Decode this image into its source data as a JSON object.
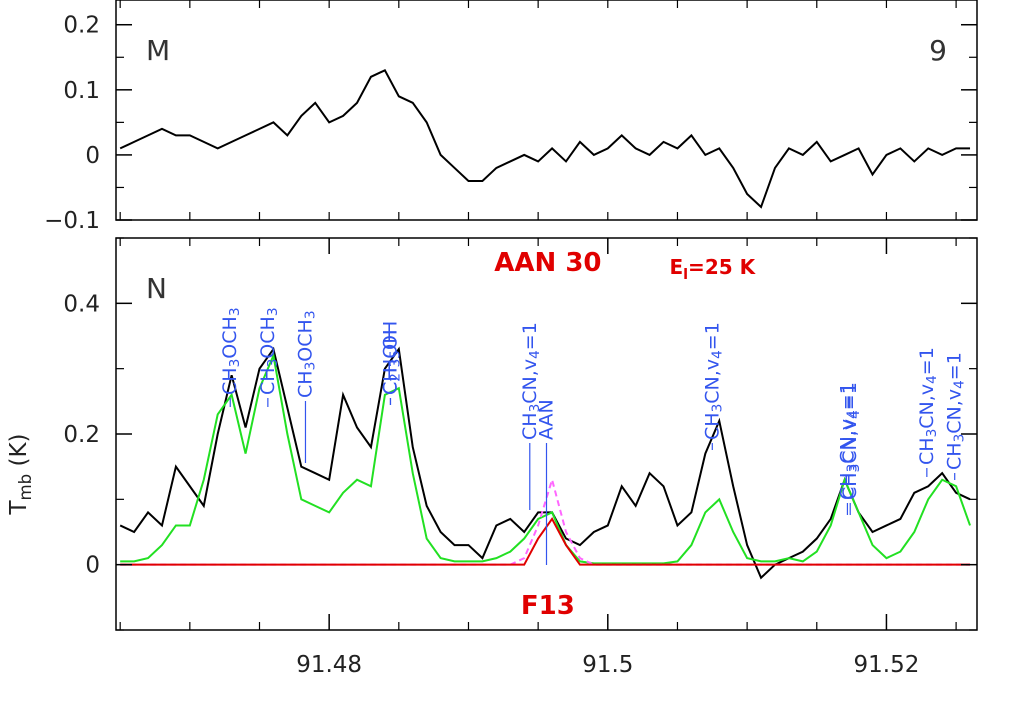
{
  "chart_data": [
    {
      "type": "line",
      "label": "M",
      "number": "9",
      "xlim": [
        91.4647,
        91.5265
      ],
      "ylim": [
        -0.1,
        0.238
      ],
      "yticks": [
        0.2,
        0.1,
        0,
        {
          "value": -0.1,
          "label": "−0.1"
        }
      ],
      "yminorticks": [
        -0.05,
        0.05,
        0.15
      ],
      "xminorticks": [
        91.465,
        91.47,
        91.475,
        91.48,
        91.485,
        91.49,
        91.495,
        91.5,
        91.505,
        91.51,
        91.515,
        91.52,
        91.525
      ],
      "x": [
        91.465,
        91.466,
        91.467,
        91.468,
        91.469,
        91.47,
        91.471,
        91.472,
        91.473,
        91.474,
        91.475,
        91.476,
        91.477,
        91.478,
        91.479,
        91.48,
        91.481,
        91.482,
        91.483,
        91.484,
        91.485,
        91.486,
        91.487,
        91.488,
        91.489,
        91.49,
        91.491,
        91.492,
        91.493,
        91.494,
        91.495,
        91.496,
        91.497,
        91.498,
        91.499,
        91.5,
        91.501,
        91.502,
        91.503,
        91.504,
        91.505,
        91.506,
        91.507,
        91.508,
        91.509,
        91.51,
        91.511,
        91.512,
        91.513,
        91.514,
        91.515,
        91.516,
        91.517,
        91.518,
        91.519,
        91.52,
        91.521,
        91.522,
        91.523,
        91.524,
        91.525,
        91.526
      ],
      "series": [
        {
          "color": "#000000",
          "values": [
            0.01,
            0.02,
            0.03,
            0.04,
            0.03,
            0.03,
            0.02,
            0.01,
            0.02,
            0.03,
            0.04,
            0.05,
            0.03,
            0.06,
            0.08,
            0.05,
            0.06,
            0.08,
            0.12,
            0.13,
            0.09,
            0.08,
            0.05,
            0.0,
            -0.02,
            -0.04,
            -0.04,
            -0.02,
            -0.01,
            0.0,
            -0.01,
            0.01,
            -0.01,
            0.02,
            0.0,
            0.01,
            0.03,
            0.01,
            0.0,
            0.02,
            0.01,
            0.03,
            0.0,
            0.01,
            -0.02,
            -0.06,
            -0.08,
            -0.02,
            0.01,
            0.0,
            0.02,
            -0.01,
            0.0,
            0.01,
            -0.03,
            0.0,
            0.01,
            -0.01,
            0.01,
            0.0,
            0.01,
            0.01
          ]
        }
      ]
    },
    {
      "type": "line",
      "label": "N",
      "y_label": "Tmb (K)",
      "annotations": [
        {
          "text": "AAN 30",
          "x": 91.4957,
          "y": 0.465
        },
        {
          "text": "El=25 K",
          "x": 91.5075,
          "y": 0.46
        },
        {
          "text": "F13",
          "x": 91.4957,
          "y": -0.06
        }
      ],
      "xlim": [
        91.4647,
        91.5265
      ],
      "ylim": [
        -0.1,
        0.5
      ],
      "xticks": [
        91.48,
        91.5,
        91.52
      ],
      "xminorticks": [
        91.465,
        91.47,
        91.475,
        91.485,
        91.49,
        91.495,
        91.505,
        91.51,
        91.515,
        91.525
      ],
      "yticks": [
        0,
        0.2,
        0.4
      ],
      "yminorticks": [
        -0.1,
        0.1,
        0.3,
        0.5
      ],
      "x": [
        91.465,
        91.466,
        91.467,
        91.468,
        91.469,
        91.47,
        91.471,
        91.472,
        91.473,
        91.474,
        91.475,
        91.476,
        91.477,
        91.478,
        91.479,
        91.48,
        91.481,
        91.482,
        91.483,
        91.484,
        91.485,
        91.486,
        91.487,
        91.488,
        91.489,
        91.49,
        91.491,
        91.492,
        91.493,
        91.494,
        91.495,
        91.496,
        91.497,
        91.498,
        91.499,
        91.5,
        91.501,
        91.502,
        91.503,
        91.504,
        91.505,
        91.506,
        91.507,
        91.508,
        91.509,
        91.51,
        91.511,
        91.512,
        91.513,
        91.514,
        91.515,
        91.516,
        91.517,
        91.518,
        91.519,
        91.52,
        91.521,
        91.522,
        91.523,
        91.524,
        91.525,
        91.526
      ],
      "series": [
        {
          "color": "#000000",
          "values": [
            0.06,
            0.05,
            0.08,
            0.06,
            0.15,
            0.12,
            0.09,
            0.2,
            0.29,
            0.21,
            0.3,
            0.33,
            0.24,
            0.15,
            0.14,
            0.13,
            0.26,
            0.21,
            0.18,
            0.3,
            0.33,
            0.18,
            0.09,
            0.05,
            0.03,
            0.03,
            0.01,
            0.06,
            0.07,
            0.05,
            0.08,
            0.08,
            0.04,
            0.03,
            0.05,
            0.06,
            0.12,
            0.09,
            0.14,
            0.12,
            0.06,
            0.08,
            0.17,
            0.22,
            0.12,
            0.03,
            -0.02,
            0.0,
            0.01,
            0.02,
            0.04,
            0.07,
            0.13,
            0.08,
            0.05,
            0.06,
            0.07,
            0.11,
            0.12,
            0.14,
            0.11,
            0.1
          ]
        },
        {
          "color": "#22e022",
          "values": [
            0.005,
            0.005,
            0.01,
            0.03,
            0.06,
            0.06,
            0.13,
            0.23,
            0.26,
            0.17,
            0.27,
            0.32,
            0.2,
            0.1,
            0.09,
            0.08,
            0.11,
            0.13,
            0.12,
            0.26,
            0.27,
            0.14,
            0.04,
            0.01,
            0.005,
            0.005,
            0.005,
            0.01,
            0.02,
            0.04,
            0.07,
            0.08,
            0.03,
            0.005,
            0.002,
            0.002,
            0.002,
            0.002,
            0.002,
            0.002,
            0.005,
            0.03,
            0.08,
            0.1,
            0.05,
            0.01,
            0.005,
            0.005,
            0.01,
            0.005,
            0.02,
            0.06,
            0.13,
            0.08,
            0.03,
            0.01,
            0.02,
            0.05,
            0.1,
            0.13,
            0.12,
            0.06
          ]
        },
        {
          "color": "#ff66ff",
          "dashed": true,
          "values": [
            0,
            0,
            0,
            0,
            0,
            0,
            0,
            0,
            0,
            0,
            0,
            0,
            0,
            0,
            0,
            0,
            0,
            0,
            0,
            0,
            0,
            0,
            0,
            0,
            0,
            0,
            0,
            0,
            0,
            0.01,
            0.06,
            0.13,
            0.05,
            0.01,
            0,
            0,
            0,
            0,
            0,
            0,
            0,
            0,
            0,
            0,
            0,
            0,
            0,
            0,
            0,
            0,
            0,
            0,
            0,
            0,
            0,
            0,
            0,
            0,
            0,
            0,
            0,
            0
          ]
        },
        {
          "color": "#e00000",
          "values": [
            0,
            0,
            0,
            0,
            0,
            0,
            0,
            0,
            0,
            0,
            0,
            0,
            0,
            0,
            0,
            0,
            0,
            0,
            0,
            0,
            0,
            0,
            0,
            0,
            0,
            0,
            0,
            0,
            0,
            0,
            0.04,
            0.07,
            0.03,
            0,
            0,
            0,
            0,
            0,
            0,
            0,
            0,
            0,
            0,
            0,
            0,
            0,
            0,
            0,
            0,
            0,
            0,
            0,
            0,
            0,
            0,
            0,
            0,
            0,
            0,
            0,
            0,
            0
          ]
        }
      ],
      "line_labels": [
        {
          "text": "CH3OCH3",
          "x": 91.4729
        },
        {
          "text": "CH3OCH3",
          "x": 91.4756
        },
        {
          "text": "CH3OCH3",
          "x": 91.4783
        },
        {
          "text": "C2H5OH",
          "x": 91.4844
        },
        {
          "text": "CH3OH",
          "x": 91.4844
        },
        {
          "text": "CH3CN,v4=1",
          "x": 91.4944
        },
        {
          "text": "AAN",
          "x": 91.4956
        },
        {
          "text": "CH3CN,v4=1",
          "x": 91.5075
        },
        {
          "text": "CH3CN,v4=1",
          "x": 91.5172
        },
        {
          "text": "CH3CN,v4=1",
          "x": 91.5174
        },
        {
          "text": "CH3CN,v4=1",
          "x": 91.5229
        },
        {
          "text": "CH3CN,v4=1",
          "x": 91.5249
        }
      ]
    }
  ]
}
